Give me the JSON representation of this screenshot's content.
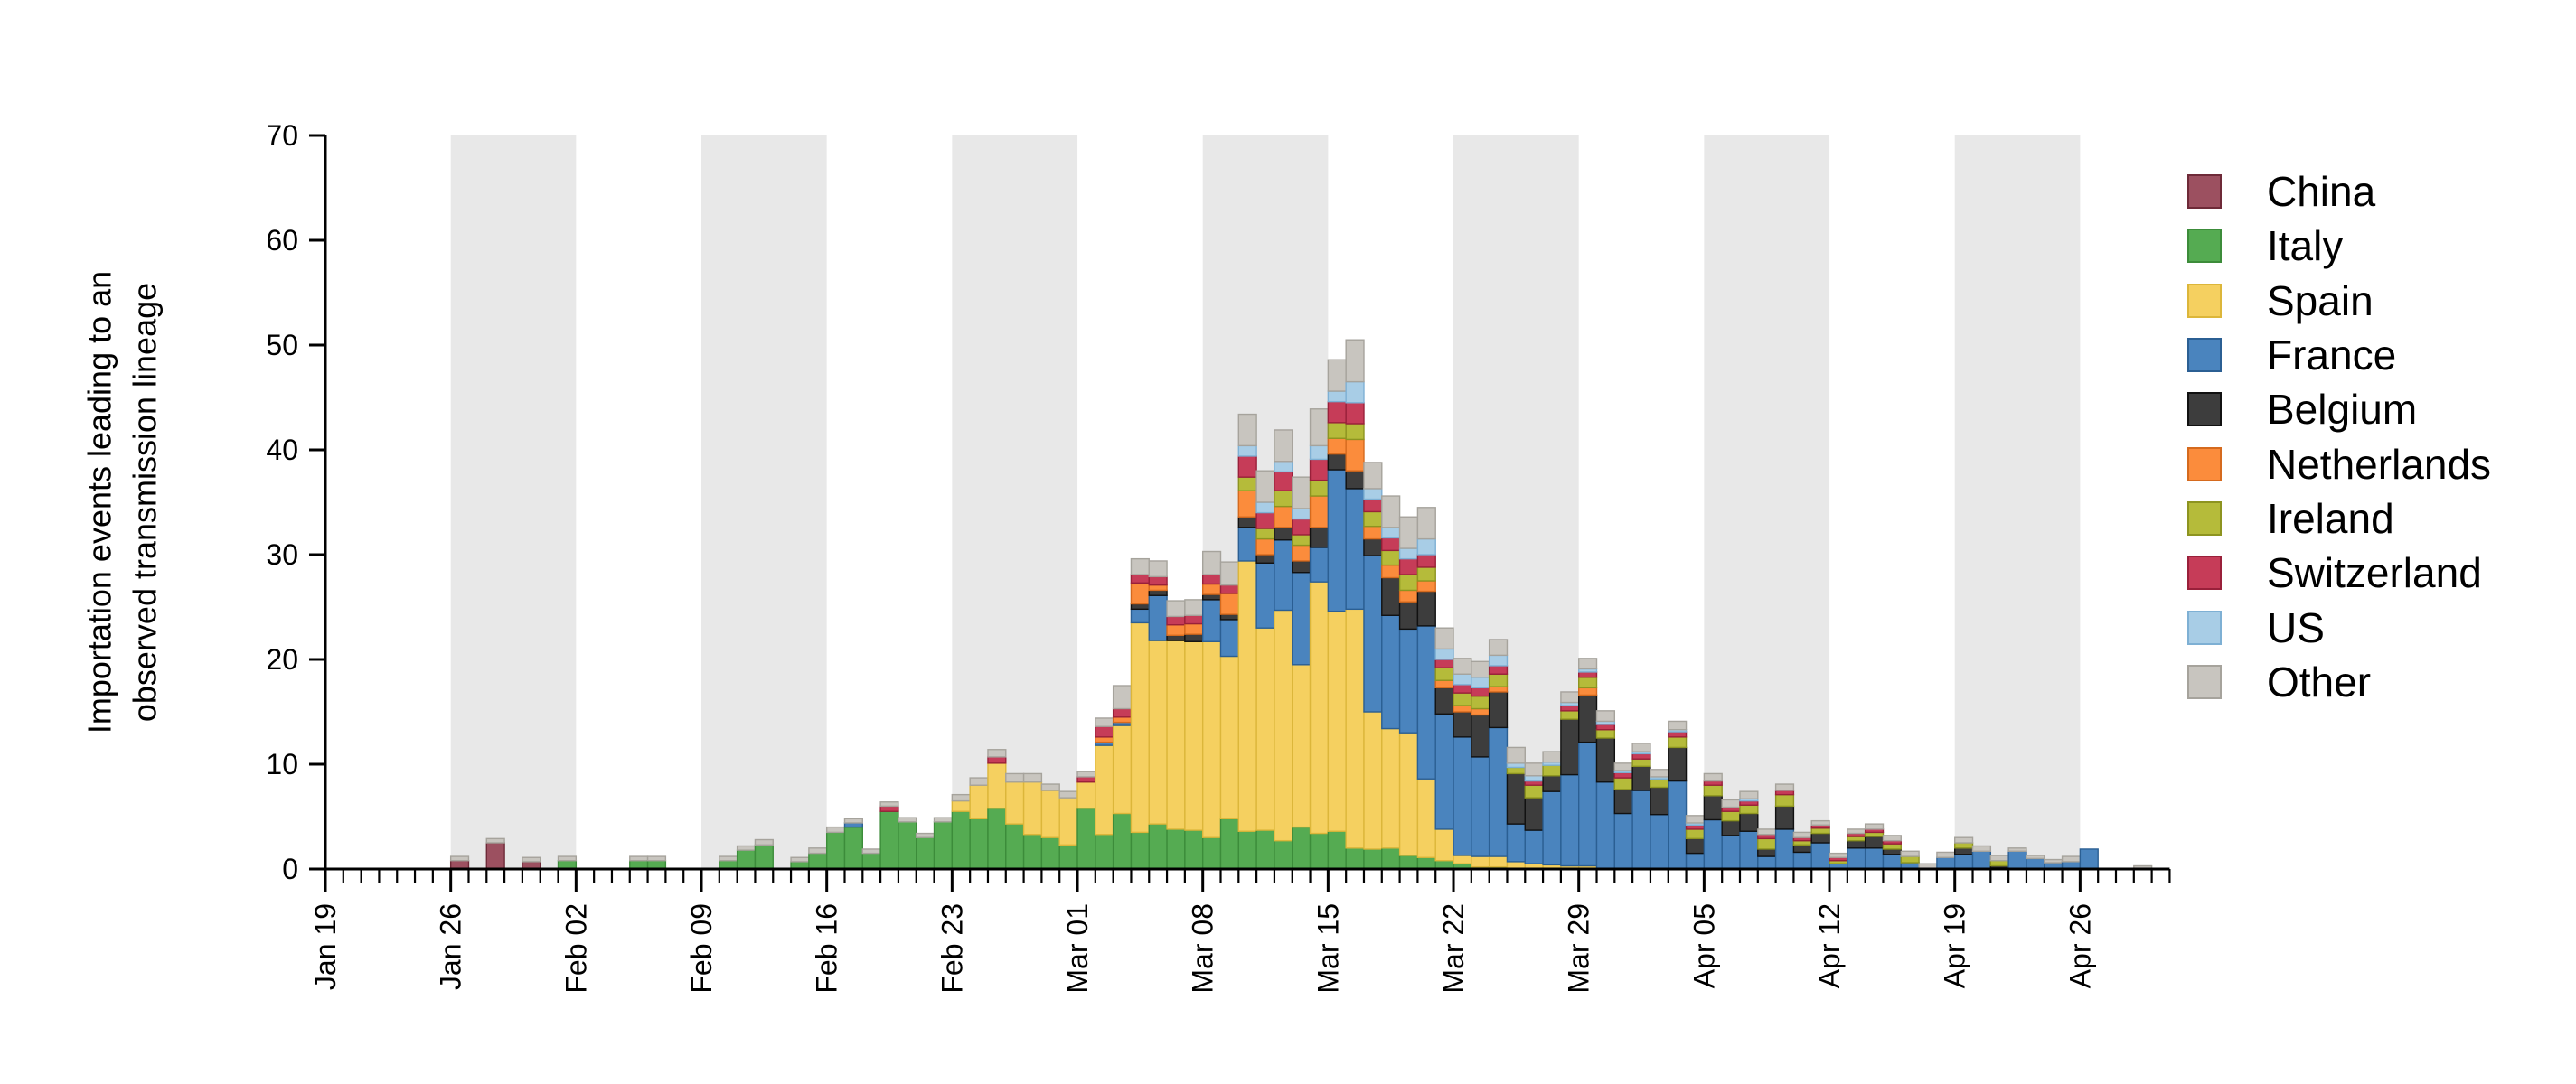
{
  "chart_data": {
    "type": "bar",
    "stacked": true,
    "x_start": "2020-01-19",
    "x_end": "2020-04-30",
    "ylabel": [
      "Importation events leading to an",
      "observed transmission lineage"
    ],
    "ylim": [
      0,
      70
    ],
    "yticks": [
      0,
      10,
      20,
      30,
      40,
      50,
      60,
      70
    ],
    "xtick_labels": [
      "Jan 19",
      "Jan 26",
      "Feb 02",
      "Feb 09",
      "Feb 16",
      "Feb 23",
      "Mar 01",
      "Mar 08",
      "Mar 15",
      "Mar 22",
      "Mar 29",
      "Apr 05",
      "Apr 12",
      "Apr 19",
      "Apr 26"
    ],
    "shaded_weeks": [
      1,
      3,
      5,
      7,
      9,
      11,
      13
    ],
    "legend_position": "right",
    "series": [
      {
        "name": "China",
        "color": "#9c5060",
        "edge": "#6e2a38",
        "values": [
          0,
          0,
          0,
          0,
          0,
          0,
          0,
          0.8,
          0,
          2.5,
          0,
          0.7,
          0,
          0,
          0,
          0,
          0,
          0,
          0,
          0,
          0,
          0,
          0,
          0,
          0,
          0,
          0,
          0,
          0,
          0,
          0,
          0,
          0,
          0,
          0,
          0,
          0,
          0,
          0,
          0,
          0,
          0,
          0,
          0,
          0,
          0,
          0,
          0,
          0,
          0,
          0,
          0,
          0,
          0,
          0,
          0,
          0,
          0,
          0,
          0,
          0,
          0,
          0,
          0,
          0,
          0,
          0,
          0,
          0,
          0,
          0,
          0,
          0,
          0,
          0,
          0,
          0,
          0,
          0,
          0,
          0,
          0,
          0,
          0,
          0,
          0,
          0,
          0,
          0,
          0,
          0,
          0,
          0,
          0,
          0,
          0,
          0,
          0,
          0,
          0,
          0,
          0
        ]
      },
      {
        "name": "Italy",
        "color": "#55ab52",
        "edge": "#3c8c3a",
        "values": [
          0,
          0,
          0,
          0,
          0,
          0,
          0,
          0,
          0,
          0,
          0,
          0,
          0,
          0.8,
          0,
          0,
          0,
          0.8,
          0.8,
          0,
          0,
          0,
          0.8,
          1.8,
          2.3,
          0,
          0.7,
          1.5,
          3.5,
          4,
          1.5,
          5.5,
          4.5,
          3,
          4.5,
          5.5,
          4.8,
          5.8,
          4.3,
          3.3,
          3,
          2.3,
          5.8,
          3.3,
          5.3,
          3.5,
          4.3,
          3.8,
          3.7,
          3,
          4.8,
          3.6,
          3.7,
          2.7,
          4,
          3.4,
          3.6,
          2,
          1.9,
          2,
          1.3,
          1.1,
          0.8,
          0.5,
          0.2,
          0.2,
          0,
          0,
          0,
          0,
          0,
          0,
          0,
          0,
          0,
          0,
          0,
          0,
          0,
          0,
          0,
          0,
          0,
          0,
          0,
          0,
          0,
          0,
          0,
          0,
          0,
          0,
          0,
          0,
          0,
          0,
          0,
          0,
          0,
          0,
          0,
          0,
          0
        ]
      },
      {
        "name": "Spain",
        "color": "#f5d060",
        "edge": "#dcb63a",
        "values": [
          0,
          0,
          0,
          0,
          0,
          0,
          0,
          0,
          0,
          0,
          0,
          0,
          0,
          0,
          0,
          0,
          0,
          0,
          0,
          0,
          0,
          0,
          0,
          0,
          0,
          0,
          0,
          0,
          0,
          0,
          0,
          0,
          0,
          0,
          0,
          1,
          3.2,
          4.3,
          4,
          5,
          4.5,
          4.5,
          2.5,
          8.5,
          8.4,
          20,
          17.5,
          18,
          18,
          18.7,
          15.5,
          25.8,
          19.3,
          22,
          15.5,
          24,
          21,
          22.8,
          13.1,
          11.4,
          11.7,
          7.5,
          3,
          0.8,
          1,
          1,
          0.7,
          0.5,
          0.4,
          0.3,
          0.3,
          0,
          0,
          0,
          0,
          0,
          0,
          0,
          0,
          0,
          0,
          0,
          0,
          0,
          0,
          0,
          0,
          0,
          0,
          0,
          0,
          0,
          0,
          0,
          0,
          0,
          0,
          0,
          0,
          0,
          0
        ]
      },
      {
        "name": "France",
        "color": "#4a84be",
        "edge": "#2b5f93",
        "values": [
          0,
          0,
          0,
          0,
          0,
          0,
          0,
          0,
          0,
          0,
          0,
          0,
          0,
          0,
          0,
          0,
          0,
          0,
          0,
          0,
          0,
          0,
          0,
          0,
          0,
          0,
          0,
          0,
          0,
          0.4,
          0,
          0,
          0,
          0,
          0,
          0,
          0,
          0,
          0,
          0,
          0,
          0,
          0,
          0.3,
          0.3,
          1.3,
          4.3,
          0,
          0,
          4,
          3.5,
          3.2,
          6.2,
          6.7,
          8.8,
          3.3,
          13.5,
          11.5,
          14.9,
          10.8,
          9.9,
          14.6,
          11,
          11.3,
          9.5,
          12.3,
          3.6,
          3.2,
          7,
          8.7,
          11.8,
          8.3,
          5.3,
          7.5,
          5.2,
          8.4,
          1.5,
          4.7,
          3.2,
          3.6,
          1.2,
          3.8,
          1.6,
          2.5,
          0.5,
          2,
          2,
          1.4,
          0.6,
          0,
          1.1,
          1.4,
          1.7,
          0.1,
          1.7,
          1,
          0.6,
          0.7,
          1.9,
          0,
          0,
          0,
          0,
          0.4
        ]
      },
      {
        "name": "Belgium",
        "color": "#3d3d3d",
        "edge": "#111111",
        "values": [
          0,
          0,
          0,
          0,
          0,
          0,
          0,
          0,
          0,
          0,
          0,
          0,
          0,
          0,
          0,
          0,
          0,
          0,
          0,
          0,
          0,
          0,
          0,
          0,
          0,
          0,
          0,
          0,
          0,
          0,
          0,
          0,
          0,
          0,
          0,
          0,
          0,
          0,
          0,
          0,
          0,
          0,
          0,
          0,
          0,
          0.5,
          0.5,
          0.5,
          0.7,
          0.5,
          0.5,
          1,
          0.8,
          1.2,
          1.1,
          1.9,
          1.5,
          1.7,
          1.6,
          3.6,
          2.6,
          3.3,
          2.5,
          2.4,
          4,
          3.4,
          4.8,
          3.1,
          1.5,
          5.3,
          4.5,
          4.2,
          2.3,
          2.3,
          2.6,
          3.2,
          1.4,
          2.3,
          1.4,
          1.7,
          0.7,
          2.2,
          0.7,
          0.9,
          0,
          0.7,
          1.1,
          0.5,
          0,
          0,
          0,
          0.6,
          0,
          0.2,
          0,
          0,
          0,
          0,
          0,
          0,
          0,
          0,
          0
        ]
      },
      {
        "name": "Netherlands",
        "color": "#fb8c3c",
        "edge": "#d56a1e",
        "values": [
          0,
          0,
          0,
          0,
          0,
          0,
          0,
          0,
          0,
          0,
          0,
          0,
          0,
          0,
          0,
          0,
          0,
          0,
          0,
          0,
          0,
          0,
          0,
          0,
          0,
          0,
          0,
          0,
          0,
          0,
          0,
          0,
          0,
          0,
          0,
          0,
          0,
          0,
          0,
          0,
          0,
          0,
          0,
          0.5,
          0.5,
          2,
          0.5,
          1,
          1,
          1,
          2,
          2.5,
          1.5,
          2,
          1.5,
          3,
          1.5,
          3,
          1.2,
          1.2,
          1.1,
          1,
          0.7,
          0.6,
          0.6,
          0.5,
          0,
          0,
          0,
          0,
          0.7,
          0,
          0,
          0,
          0,
          0,
          0,
          0,
          0,
          0,
          0,
          0,
          0,
          0,
          0,
          0,
          0,
          0,
          0,
          0,
          0,
          0,
          0,
          0,
          0,
          0,
          0,
          0,
          0,
          0,
          0,
          0,
          0
        ]
      },
      {
        "name": "Ireland",
        "color": "#b5bb3a",
        "edge": "#8d9420",
        "values": [
          0,
          0,
          0,
          0,
          0,
          0,
          0,
          0,
          0,
          0,
          0,
          0,
          0,
          0,
          0,
          0,
          0,
          0,
          0,
          0,
          0,
          0,
          0,
          0,
          0,
          0,
          0,
          0,
          0,
          0,
          0,
          0,
          0,
          0,
          0,
          0,
          0,
          0,
          0,
          0,
          0,
          0,
          0,
          0,
          0,
          0,
          0,
          0,
          0,
          0,
          0,
          1.3,
          1,
          1.5,
          1,
          1.5,
          1.5,
          1.5,
          1.4,
          1.4,
          1.5,
          1.3,
          1.2,
          1.2,
          1.2,
          1.2,
          0.6,
          1.2,
          1,
          0.8,
          1,
          0.8,
          1.1,
          0.7,
          0.8,
          1,
          0.9,
          1,
          0.9,
          0.8,
          1,
          1.1,
          0.4,
          0.5,
          0.3,
          0.4,
          0.4,
          0.5,
          0.6,
          0,
          0,
          0.5,
          0,
          0.5,
          0,
          0,
          0,
          0,
          0,
          0,
          0,
          0,
          0
        ]
      },
      {
        "name": "Switzerland",
        "color": "#c63c58",
        "edge": "#99203a",
        "values": [
          0,
          0,
          0,
          0,
          0,
          0,
          0,
          0,
          0,
          0,
          0,
          0,
          0,
          0,
          0,
          0,
          0,
          0,
          0,
          0,
          0,
          0,
          0,
          0,
          0,
          0,
          0,
          0,
          0,
          0,
          0,
          0.5,
          0,
          0,
          0,
          0,
          0,
          0.6,
          0,
          0,
          0,
          0,
          0.5,
          1,
          0.8,
          0.8,
          0.8,
          0.8,
          0.8,
          0.9,
          0.8,
          2,
          1.5,
          1.8,
          1.5,
          2,
          2,
          2,
          1.2,
          1.2,
          1.5,
          1.2,
          0.8,
          0.8,
          0.8,
          0.8,
          0,
          0.4,
          0,
          0.5,
          0.5,
          0.5,
          0.5,
          0.5,
          0,
          0.5,
          0.4,
          0.4,
          0.4,
          0.4,
          0.4,
          0.4,
          0.3,
          0.3,
          0.3,
          0.3,
          0.3,
          0.3,
          0,
          0,
          0,
          0,
          0,
          0,
          0,
          0,
          0,
          0,
          0,
          0,
          0,
          0,
          0
        ]
      },
      {
        "name": "US",
        "color": "#a8cde6",
        "edge": "#7eb0d4",
        "values": [
          0,
          0,
          0,
          0,
          0,
          0,
          0,
          0,
          0,
          0,
          0,
          0,
          0,
          0,
          0,
          0,
          0,
          0,
          0,
          0,
          0,
          0,
          0,
          0,
          0,
          0,
          0,
          0,
          0,
          0,
          0,
          0,
          0,
          0,
          0,
          0,
          0,
          0,
          0,
          0,
          0,
          0,
          0,
          0,
          0,
          0,
          0,
          0,
          0,
          0,
          0,
          1,
          1,
          1,
          1,
          1.3,
          1,
          2,
          1,
          1,
          1,
          1.5,
          1,
          1,
          1,
          1,
          0.4,
          0.5,
          0.3,
          0.3,
          0.3,
          0.3,
          0.2,
          0.2,
          0.2,
          0.2,
          0.2,
          0,
          0,
          0.2,
          0,
          0,
          0,
          0,
          0,
          0,
          0,
          0,
          0,
          0,
          0,
          0,
          0,
          0,
          0,
          0,
          0,
          0,
          0,
          0,
          0,
          0
        ]
      },
      {
        "name": "Other",
        "color": "#c8c5bf",
        "edge": "#a6a39c",
        "values": [
          0,
          0,
          0,
          0,
          0,
          0,
          0,
          0.4,
          0,
          0.4,
          0,
          0.4,
          0,
          0.4,
          0,
          0,
          0,
          0.4,
          0.4,
          0,
          0,
          0,
          0.4,
          0.4,
          0.5,
          0,
          0.4,
          0.5,
          0.5,
          0.4,
          0.4,
          0.4,
          0.4,
          0.4,
          0.4,
          0.6,
          0.7,
          0.7,
          0.8,
          0.8,
          0.6,
          0.6,
          0.5,
          0.8,
          2.2,
          1.5,
          1.5,
          1.5,
          1.5,
          2.2,
          2.2,
          3,
          3,
          3,
          3,
          3.5,
          3,
          4,
          2.5,
          3,
          3,
          3,
          2,
          1.5,
          1.5,
          1.5,
          1.5,
          1.2,
          1,
          1,
          1,
          1,
          0.7,
          0.8,
          0.7,
          0.8,
          0.7,
          0.7,
          0.7,
          0.7,
          0.5,
          0.6,
          0.5,
          0.4,
          0.4,
          0.4,
          0.5,
          0.5,
          0.5,
          0.5,
          0.5,
          0.5,
          0.5,
          0.5,
          0.3,
          0.3,
          0.3,
          0.5,
          0,
          0,
          0,
          0.3
        ]
      }
    ]
  }
}
